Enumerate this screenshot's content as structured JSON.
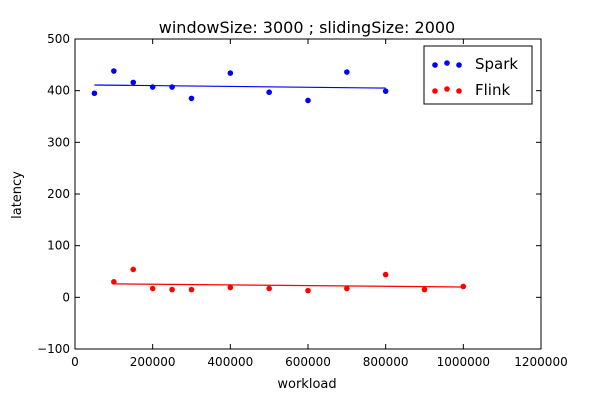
{
  "chart_data": {
    "type": "scatter",
    "title": "windowSize: 3000 ; slidingSize: 2000",
    "xlabel": "workload",
    "ylabel": "latency",
    "xlim": [
      0,
      1200000
    ],
    "ylim": [
      -100,
      500
    ],
    "xticks": [
      0,
      200000,
      400000,
      600000,
      800000,
      1000000,
      1200000
    ],
    "yticks": [
      -100,
      0,
      100,
      200,
      300,
      400,
      500
    ],
    "grid": false,
    "legend_position": "top-right",
    "series": [
      {
        "name": "Spark",
        "color": "#0000ff",
        "points": [
          [
            50000,
            395
          ],
          [
            100000,
            438
          ],
          [
            150000,
            416
          ],
          [
            200000,
            407
          ],
          [
            250000,
            407
          ],
          [
            300000,
            385
          ],
          [
            400000,
            434
          ],
          [
            500000,
            397
          ],
          [
            600000,
            381
          ],
          [
            700000,
            436
          ],
          [
            800000,
            399
          ]
        ],
        "trendline": [
          [
            50000,
            411
          ],
          [
            800000,
            405
          ]
        ]
      },
      {
        "name": "Flink",
        "color": "#ff0000",
        "points": [
          [
            100000,
            30
          ],
          [
            150000,
            54
          ],
          [
            200000,
            17
          ],
          [
            250000,
            15
          ],
          [
            300000,
            15
          ],
          [
            400000,
            19
          ],
          [
            500000,
            17
          ],
          [
            600000,
            13
          ],
          [
            700000,
            17
          ],
          [
            800000,
            44
          ],
          [
            900000,
            15
          ],
          [
            1000000,
            21
          ]
        ],
        "trendline": [
          [
            100000,
            26
          ],
          [
            1000000,
            20
          ]
        ]
      }
    ]
  }
}
